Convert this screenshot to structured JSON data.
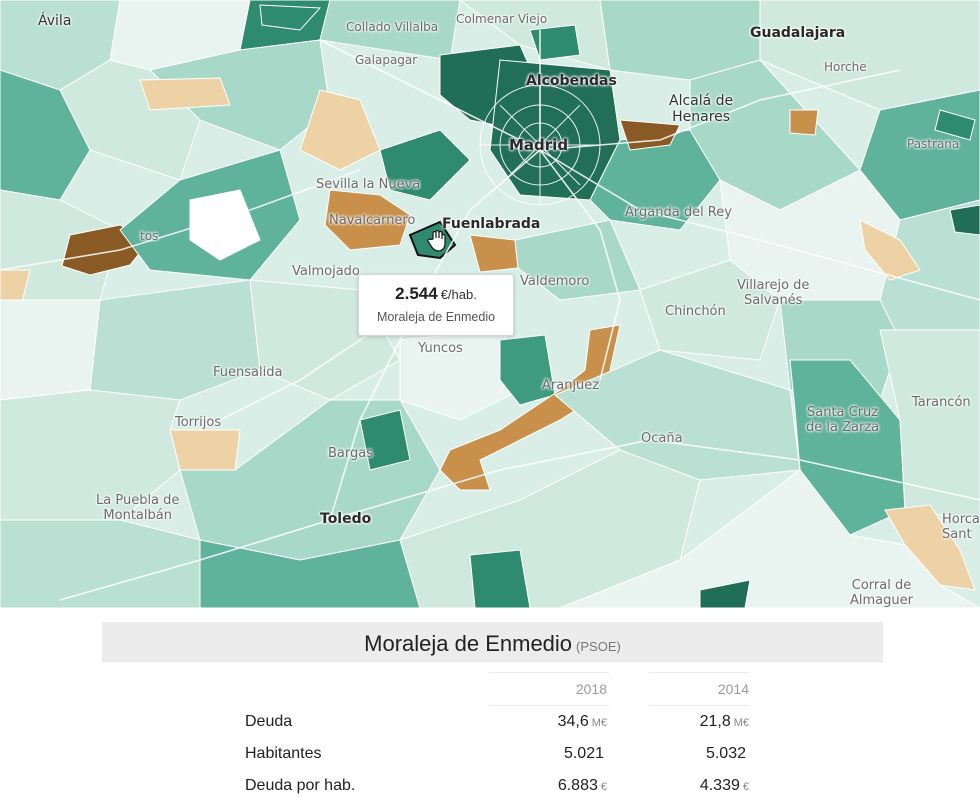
{
  "map": {
    "places": {
      "avila": "Ávila",
      "collado_villalba": "Collado Villalba",
      "colmenar_viejo": "Colmenar Viejo",
      "guadalajara": "Guadalajara",
      "galapagar": "Galapagar",
      "alcobendas": "Alcobendas",
      "horche": "Horche",
      "alcala": "Alcalá de\nHenares",
      "madrid": "Madrid",
      "pastrana": "Pastrana",
      "sevilla_nueva": "Sevilla la Nueva",
      "navalcarnero": "Navalcarnero",
      "fuenlabrada": "Fuenlabrada",
      "arganda": "Arganda del Rey",
      "tos": "tos",
      "valmojado": "Valmojado",
      "valdemoro": "Valdemoro",
      "villarejo": "Villarejo de\nSalvanés",
      "chinchon": "Chinchón",
      "yuncos": "Yuncos",
      "fuensalida": "Fuensalida",
      "aranjuez": "Aranjuez",
      "tarancon": "Tarancón",
      "santa_cruz": "Santa Cruz\nde la Zarza",
      "torrijos": "Torrijos",
      "ocana": "Ocaña",
      "bargas": "Bargas",
      "la_puebla": "La Puebla de\nMontalbán",
      "toledo": "Toledo",
      "horca": "Horca\nSant",
      "corral": "Corral de\nAlmaguer"
    },
    "colors": {
      "dark_teal": "#2e8b6e",
      "mid_teal": "#5fb39a",
      "light_teal": "#a8d8c8",
      "pale_teal": "#cfe9df",
      "brown": "#8a5a24",
      "orange_brown": "#c8904a",
      "tan": "#ecd2a4"
    },
    "tooltip": {
      "value": "2.544",
      "unit": "€/hab.",
      "name": "Moraleja de Enmedio"
    }
  },
  "panel": {
    "title": "Moraleja de Enmedio",
    "party": "(PSOE)",
    "columns": [
      "2018",
      "2014"
    ],
    "rows": [
      {
        "label": "Deuda",
        "v2018": "34,6",
        "u2018": "M€",
        "v2014": "21,8",
        "u2014": "M€"
      },
      {
        "label": "Habitantes",
        "v2018": "5.021",
        "u2018": "",
        "v2014": "5.032",
        "u2014": ""
      },
      {
        "label": "Deuda por hab.",
        "v2018": "6.883",
        "u2018": "€",
        "v2014": "4.339",
        "u2014": "€"
      }
    ]
  }
}
